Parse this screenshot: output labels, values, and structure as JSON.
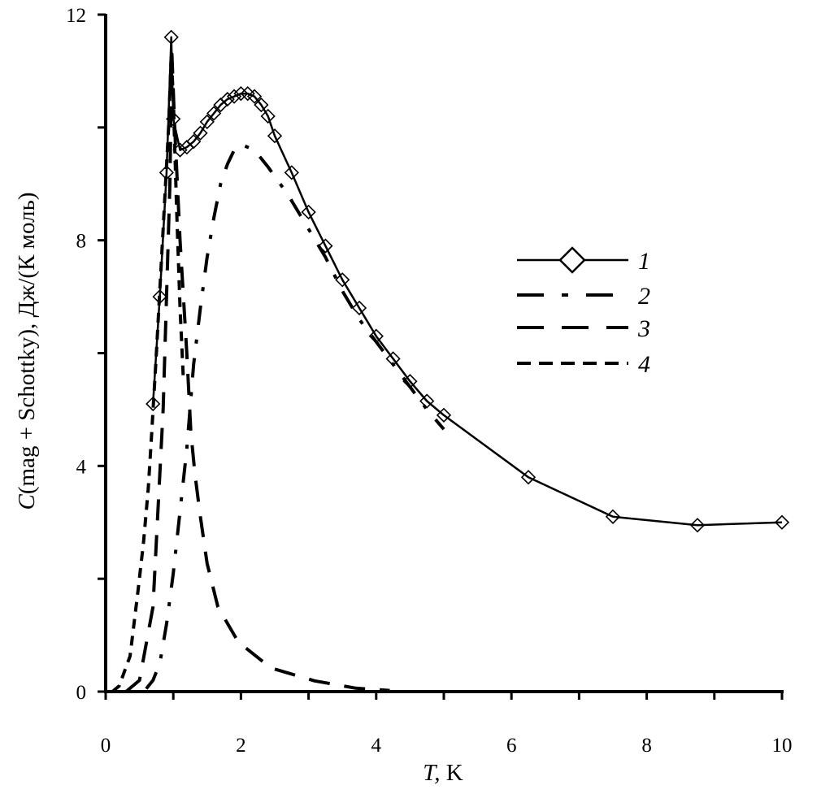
{
  "chart_data": {
    "type": "line",
    "title": "",
    "xlabel": "T, K",
    "xlabel_italic": "T",
    "xlabel_rest": ", K",
    "ylabel": "C(mag + Schottky), Дж/(К моль)",
    "ylabel_italic": "C",
    "ylabel_rest": "(mag + Schottky), Дж/(К моль)",
    "xlim": [
      0,
      10
    ],
    "ylim": [
      0,
      12
    ],
    "x_ticks": [
      0,
      2,
      4,
      6,
      8,
      10
    ],
    "x_tick_labels": [
      "0",
      "2",
      "4",
      "6",
      "8",
      "10"
    ],
    "x_minor_ticks": [
      1,
      3,
      5,
      7,
      9
    ],
    "y_ticks": [
      0,
      4,
      8,
      12
    ],
    "y_tick_labels": [
      "0",
      "4",
      "8",
      "12"
    ],
    "y_minor_ticks": [
      2,
      6,
      10
    ],
    "grid": false,
    "legend_position": "center-right",
    "series": [
      {
        "name": "1",
        "style": "solid-diamond",
        "x": [
          0.7,
          0.8,
          0.9,
          0.97,
          1.0,
          1.1,
          1.2,
          1.3,
          1.4,
          1.5,
          1.6,
          1.7,
          1.8,
          1.9,
          2.0,
          2.1,
          2.2,
          2.3,
          2.4,
          2.5,
          2.75,
          3.0,
          3.25,
          3.5,
          3.75,
          4.0,
          4.25,
          4.5,
          4.75,
          5.0,
          6.25,
          7.5,
          8.75,
          10.0
        ],
        "y": [
          5.1,
          7.0,
          9.2,
          11.6,
          10.15,
          9.6,
          9.65,
          9.75,
          9.9,
          10.1,
          10.25,
          10.4,
          10.5,
          10.55,
          10.6,
          10.6,
          10.55,
          10.4,
          10.2,
          9.85,
          9.2,
          8.5,
          7.9,
          7.3,
          6.8,
          6.3,
          5.9,
          5.5,
          5.15,
          4.9,
          3.8,
          3.1,
          2.95,
          3.0
        ]
      },
      {
        "name": "2",
        "style": "dash-dot",
        "x": [
          0.6,
          0.7,
          0.8,
          0.9,
          1.0,
          1.1,
          1.2,
          1.3,
          1.4,
          1.5,
          1.6,
          1.7,
          1.8,
          1.9,
          2.0,
          2.2,
          2.4,
          2.7,
          3.0,
          3.25,
          3.5,
          3.75,
          4.0,
          4.25,
          4.5,
          4.75,
          5.0
        ],
        "y": [
          0.05,
          0.2,
          0.5,
          1.2,
          2.1,
          3.2,
          4.3,
          5.8,
          6.8,
          7.7,
          8.4,
          9.0,
          9.35,
          9.6,
          9.7,
          9.6,
          9.3,
          8.8,
          8.2,
          7.7,
          7.1,
          6.6,
          6.2,
          5.8,
          5.4,
          5.0,
          4.65
        ]
      },
      {
        "name": "3",
        "style": "long-dash",
        "x": [
          0.3,
          0.5,
          0.7,
          0.85,
          0.95,
          0.98,
          1.02,
          1.1,
          1.2,
          1.26,
          1.32,
          1.4,
          1.5,
          1.66,
          1.96,
          2.44,
          3.09,
          3.7,
          4.2
        ],
        "y": [
          0.0,
          0.2,
          1.5,
          5.0,
          9.0,
          11.3,
          10.0,
          8.0,
          6.0,
          4.6,
          3.86,
          3.1,
          2.27,
          1.5,
          0.88,
          0.42,
          0.19,
          0.06,
          0.02
        ]
      },
      {
        "name": "4",
        "style": "short-dash",
        "x": [
          0.1,
          0.2,
          0.36,
          0.48,
          0.56,
          0.63,
          0.68,
          0.75,
          0.85,
          0.93,
          0.97,
          1.0,
          1.05,
          1.1,
          1.15
        ],
        "y": [
          0.0,
          0.1,
          0.63,
          1.8,
          2.65,
          3.6,
          4.58,
          6.0,
          8.2,
          10.0,
          11.3,
          10.5,
          8.5,
          6.8,
          5.5
        ]
      }
    ]
  }
}
